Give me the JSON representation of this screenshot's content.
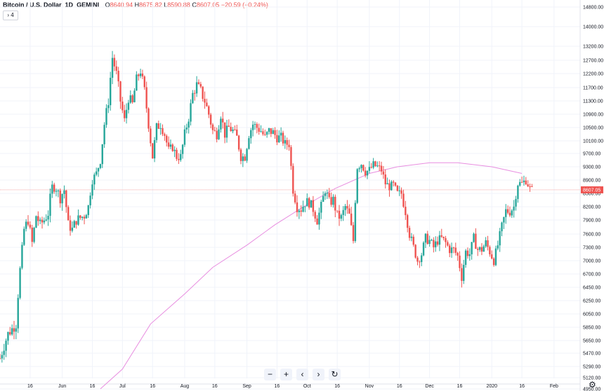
{
  "header": {
    "symbol": "Bitcoin / U.S. Dollar",
    "interval": "1D",
    "exchange": "GEMINI",
    "ohlc": {
      "o_label": "O",
      "o": "8640.94",
      "h_label": "H",
      "h": "8675.82",
      "l_label": "L",
      "l": "8590.88",
      "c_label": "C",
      "c": "8607.05",
      "change": "−20.59 (−0.24%)"
    },
    "collapse_label": "› 4"
  },
  "toolbar": {
    "zoom_out": "−",
    "zoom_in": "+",
    "scroll_left": "‹",
    "scroll_right": "›",
    "reset": "↻"
  },
  "chart_data": {
    "type": "candlestick",
    "y_ticks": [
      "14800.00",
      "14000.00",
      "13200.00",
      "12700.00",
      "12200.00",
      "11700.00",
      "11300.00",
      "10900.00",
      "10500.00",
      "10100.00",
      "9700.00",
      "9300.00",
      "8900.00",
      "8500.00",
      "8200.00",
      "7900.00",
      "7600.00",
      "7300.00",
      "7000.00",
      "6700.00",
      "6450.00",
      "6250.00",
      "6050.00",
      "5850.00",
      "5650.00",
      "5470.00",
      "5290.00",
      "5120.00",
      "4950.00"
    ],
    "ylim": [
      4860,
      15200
    ],
    "x_ticks": [
      {
        "label": "16",
        "date": "2019-05-16"
      },
      {
        "label": "Jun",
        "date": "2019-06-01"
      },
      {
        "label": "16",
        "date": "2019-06-16"
      },
      {
        "label": "Jul",
        "date": "2019-07-01"
      },
      {
        "label": "16",
        "date": "2019-07-16"
      },
      {
        "label": "Aug",
        "date": "2019-08-01"
      },
      {
        "label": "16",
        "date": "2019-08-16"
      },
      {
        "label": "Sep",
        "date": "2019-09-01"
      },
      {
        "label": "16",
        "date": "2019-09-16"
      },
      {
        "label": "Oct",
        "date": "2019-10-01"
      },
      {
        "label": "16",
        "date": "2019-10-16"
      },
      {
        "label": "Nov",
        "date": "2019-11-01"
      },
      {
        "label": "16",
        "date": "2019-11-16"
      },
      {
        "label": "Dec",
        "date": "2019-12-01"
      },
      {
        "label": "16",
        "date": "2019-12-16"
      },
      {
        "label": "2020",
        "date": "2020-01-01"
      },
      {
        "label": "16",
        "date": "2020-01-16"
      },
      {
        "label": "Feb",
        "date": "2020-02-01"
      }
    ],
    "xlim": [
      "2019-05-01",
      "2020-02-14"
    ],
    "last_price": "8607.05",
    "last_price_value": 8607.05,
    "price_series": [
      [
        "2019-05-01",
        5400
      ],
      [
        "2019-05-05",
        5750
      ],
      [
        "2019-05-09",
        5900
      ],
      [
        "2019-05-11",
        6800
      ],
      [
        "2019-05-13",
        7700
      ],
      [
        "2019-05-15",
        7900
      ],
      [
        "2019-05-17",
        7400
      ],
      [
        "2019-05-19",
        8000
      ],
      [
        "2019-05-21",
        7800
      ],
      [
        "2019-05-23",
        7900
      ],
      [
        "2019-05-25",
        8050
      ],
      [
        "2019-05-27",
        8700
      ],
      [
        "2019-05-29",
        8650
      ],
      [
        "2019-05-31",
        8400
      ],
      [
        "2019-06-02",
        8600
      ],
      [
        "2019-06-04",
        7800
      ],
      [
        "2019-06-06",
        7700
      ],
      [
        "2019-06-08",
        7900
      ],
      [
        "2019-06-10",
        7950
      ],
      [
        "2019-06-12",
        8000
      ],
      [
        "2019-06-14",
        8200
      ],
      [
        "2019-06-16",
        8900
      ],
      [
        "2019-06-18",
        9100
      ],
      [
        "2019-06-20",
        9500
      ],
      [
        "2019-06-22",
        10600
      ],
      [
        "2019-06-24",
        11300
      ],
      [
        "2019-06-26",
        12800
      ],
      [
        "2019-06-28",
        12200
      ],
      [
        "2019-06-30",
        11300
      ],
      [
        "2019-07-02",
        10700
      ],
      [
        "2019-07-04",
        11400
      ],
      [
        "2019-07-06",
        11200
      ],
      [
        "2019-07-08",
        12000
      ],
      [
        "2019-07-10",
        12300
      ],
      [
        "2019-07-12",
        11600
      ],
      [
        "2019-07-14",
        10600
      ],
      [
        "2019-07-16",
        9600
      ],
      [
        "2019-07-18",
        10500
      ],
      [
        "2019-07-20",
        10600
      ],
      [
        "2019-07-22",
        10300
      ],
      [
        "2019-07-24",
        9800
      ],
      [
        "2019-07-26",
        9900
      ],
      [
        "2019-07-28",
        9600
      ],
      [
        "2019-07-30",
        9600
      ],
      [
        "2019-08-01",
        10300
      ],
      [
        "2019-08-03",
        10800
      ],
      [
        "2019-08-05",
        11500
      ],
      [
        "2019-08-07",
        11800
      ],
      [
        "2019-08-09",
        11600
      ],
      [
        "2019-08-11",
        11300
      ],
      [
        "2019-08-13",
        10900
      ],
      [
        "2019-08-15",
        10400
      ],
      [
        "2019-08-17",
        10300
      ],
      [
        "2019-08-19",
        10900
      ],
      [
        "2019-08-21",
        10300
      ],
      [
        "2019-08-23",
        10500
      ],
      [
        "2019-08-25",
        10400
      ],
      [
        "2019-08-27",
        10200
      ],
      [
        "2019-08-29",
        9600
      ],
      [
        "2019-08-31",
        9600
      ],
      [
        "2019-09-02",
        10300
      ],
      [
        "2019-09-04",
        10600
      ],
      [
        "2019-09-06",
        10500
      ],
      [
        "2019-09-08",
        10400
      ],
      [
        "2019-09-10",
        10200
      ],
      [
        "2019-09-12",
        10400
      ],
      [
        "2019-09-14",
        10350
      ],
      [
        "2019-09-16",
        10200
      ],
      [
        "2019-09-18",
        10200
      ],
      [
        "2019-09-20",
        10000
      ],
      [
        "2019-09-22",
        10000
      ],
      [
        "2019-09-24",
        8600
      ],
      [
        "2019-09-26",
        8200
      ],
      [
        "2019-09-28",
        8150
      ],
      [
        "2019-09-30",
        8300
      ],
      [
        "2019-10-02",
        8300
      ],
      [
        "2019-10-04",
        8150
      ],
      [
        "2019-10-06",
        7900
      ],
      [
        "2019-10-08",
        8200
      ],
      [
        "2019-10-10",
        8600
      ],
      [
        "2019-10-12",
        8300
      ],
      [
        "2019-10-14",
        8350
      ],
      [
        "2019-10-16",
        8000
      ],
      [
        "2019-10-18",
        7950
      ],
      [
        "2019-10-20",
        8200
      ],
      [
        "2019-10-22",
        8000
      ],
      [
        "2019-10-24",
        7450
      ],
      [
        "2019-10-26",
        9300
      ],
      [
        "2019-10-28",
        9400
      ],
      [
        "2019-10-30",
        9150
      ],
      [
        "2019-11-01",
        9200
      ],
      [
        "2019-11-03",
        9350
      ],
      [
        "2019-11-05",
        9300
      ],
      [
        "2019-11-07",
        9200
      ],
      [
        "2019-11-09",
        8800
      ],
      [
        "2019-11-11",
        8700
      ],
      [
        "2019-11-13",
        8750
      ],
      [
        "2019-11-15",
        8500
      ],
      [
        "2019-11-17",
        8500
      ],
      [
        "2019-11-19",
        8100
      ],
      [
        "2019-11-21",
        7600
      ],
      [
        "2019-11-23",
        7300
      ],
      [
        "2019-11-25",
        7000
      ],
      [
        "2019-11-27",
        7150
      ],
      [
        "2019-11-29",
        7500
      ],
      [
        "2019-12-01",
        7450
      ],
      [
        "2019-12-03",
        7300
      ],
      [
        "2019-12-05",
        7450
      ],
      [
        "2019-12-07",
        7500
      ],
      [
        "2019-12-09",
        7400
      ],
      [
        "2019-12-11",
        7250
      ],
      [
        "2019-12-13",
        7250
      ],
      [
        "2019-12-15",
        7100
      ],
      [
        "2019-12-17",
        6650
      ],
      [
        "2019-12-19",
        7200
      ],
      [
        "2019-12-21",
        7150
      ],
      [
        "2019-12-23",
        7500
      ],
      [
        "2019-12-25",
        7250
      ],
      [
        "2019-12-27",
        7250
      ],
      [
        "2019-12-29",
        7400
      ],
      [
        "2019-12-31",
        7200
      ],
      [
        "2020-01-02",
        7000
      ],
      [
        "2020-01-04",
        7350
      ],
      [
        "2020-01-06",
        7750
      ],
      [
        "2020-01-08",
        8100
      ],
      [
        "2020-01-10",
        8100
      ],
      [
        "2020-01-12",
        8200
      ],
      [
        "2020-01-14",
        8800
      ],
      [
        "2020-01-16",
        8800
      ],
      [
        "2020-01-18",
        8900
      ],
      [
        "2020-01-20",
        8650
      ],
      [
        "2020-01-21",
        8607
      ]
    ],
    "ma_series": [
      [
        "2019-06-20",
        4900
      ],
      [
        "2019-07-01",
        5250
      ],
      [
        "2019-07-15",
        5900
      ],
      [
        "2019-08-01",
        6350
      ],
      [
        "2019-08-15",
        6850
      ],
      [
        "2019-09-01",
        7350
      ],
      [
        "2019-09-15",
        7800
      ],
      [
        "2019-10-01",
        8250
      ],
      [
        "2019-10-15",
        8650
      ],
      [
        "2019-11-01",
        9100
      ],
      [
        "2019-11-15",
        9300
      ],
      [
        "2019-12-01",
        9420
      ],
      [
        "2019-12-15",
        9420
      ],
      [
        "2020-01-01",
        9300
      ],
      [
        "2020-01-16",
        9100
      ]
    ],
    "colors": {
      "up": "#26a69a",
      "down": "#ef5350",
      "ma": "#e88ee0",
      "price_line": "#f4a7a6",
      "grid": "#f0f3fa",
      "price_label_bg": "#ef5350"
    }
  }
}
